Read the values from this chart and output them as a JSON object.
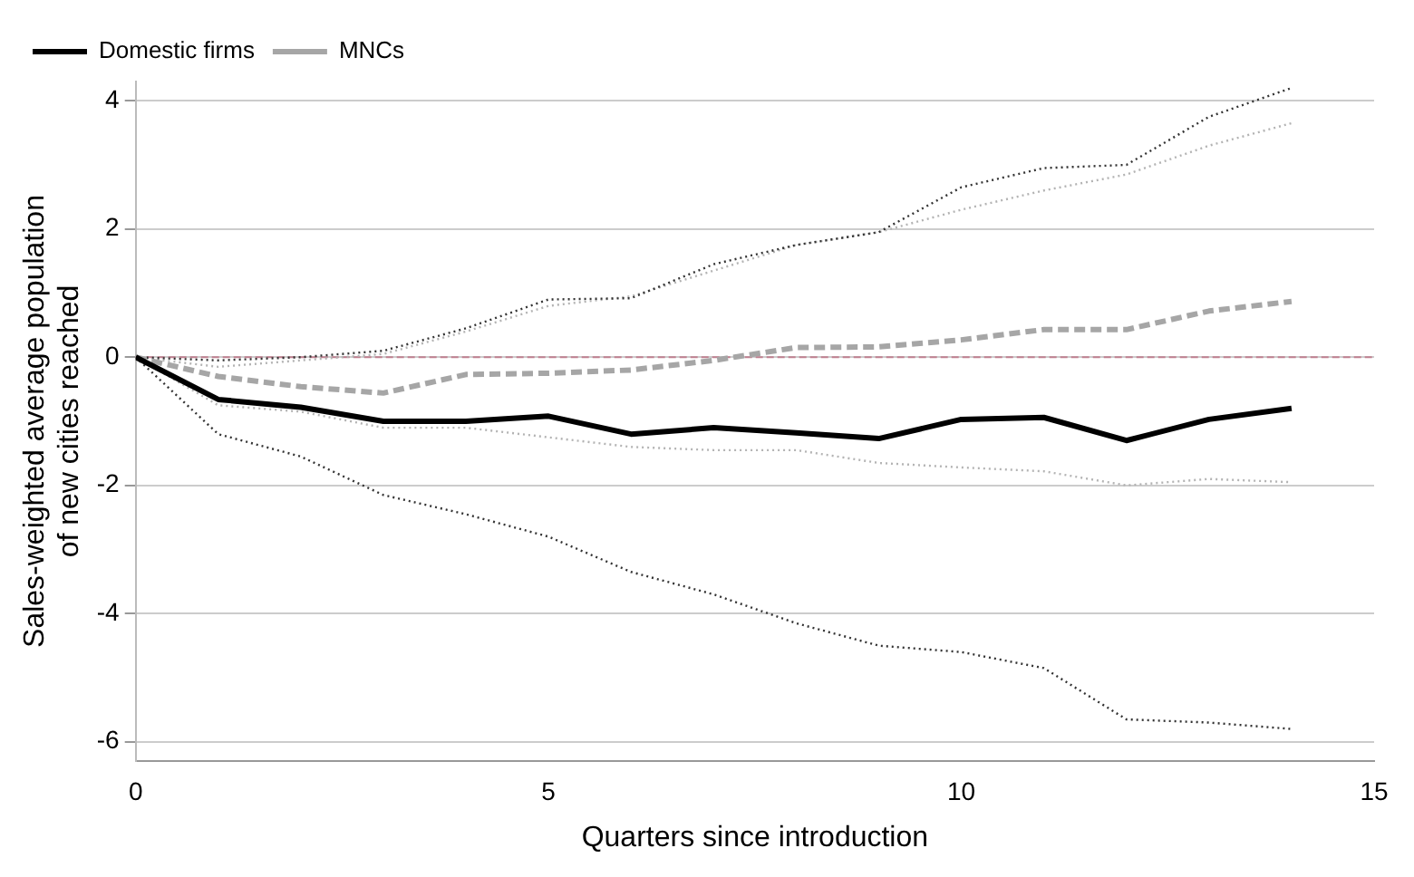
{
  "chart_data": {
    "type": "line",
    "xlabel": "Quarters since introduction",
    "ylabel": "Sales-weighted average population\nof new cities reached",
    "x": [
      0,
      1,
      2,
      3,
      4,
      5,
      6,
      7,
      8,
      9,
      10,
      11,
      12,
      13,
      14
    ],
    "series": [
      {
        "name": "Domestic firms",
        "color": "#000000",
        "line_style": "solid",
        "values": [
          0,
          -0.66,
          -0.78,
          -1.0,
          -1.0,
          -0.92,
          -1.2,
          -1.1,
          -1.18,
          -1.27,
          -0.97,
          -0.94,
          -1.3,
          -0.97,
          -0.8
        ]
      },
      {
        "name": "MNCs",
        "color": "#a6a6a6",
        "line_style": "dashed",
        "values": [
          0,
          -0.3,
          -0.46,
          -0.56,
          -0.27,
          -0.25,
          -0.2,
          -0.05,
          0.15,
          0.16,
          0.27,
          0.43,
          0.43,
          0.72,
          0.87
        ]
      },
      {
        "color": "#333333",
        "line_style": "dotted",
        "values": [
          0,
          -1.2,
          -1.55,
          -2.15,
          -2.45,
          -2.8,
          -3.35,
          -3.7,
          -4.15,
          -4.5,
          -4.6,
          -4.85,
          -5.65,
          -5.7,
          -5.8
        ]
      },
      {
        "color": "#333333",
        "line_style": "dotted",
        "values": [
          0,
          -0.05,
          0,
          0.1,
          0.45,
          0.9,
          0.92,
          1.45,
          1.75,
          1.95,
          2.65,
          2.95,
          3.0,
          3.75,
          4.2
        ]
      },
      {
        "color": "#b3b3b3",
        "line_style": "dotted",
        "values": [
          0,
          -0.75,
          -0.85,
          -1.1,
          -1.1,
          -1.25,
          -1.4,
          -1.45,
          -1.45,
          -1.65,
          -1.72,
          -1.78,
          -2.0,
          -1.9,
          -1.95
        ]
      },
      {
        "color": "#b3b3b3",
        "line_style": "dotted",
        "values": [
          0,
          -0.15,
          -0.05,
          0.05,
          0.4,
          0.8,
          0.95,
          1.35,
          1.75,
          1.95,
          2.3,
          2.6,
          2.85,
          3.3,
          3.65
        ]
      }
    ],
    "xlim": [
      0,
      15
    ],
    "xticks": [
      0,
      5,
      10,
      15
    ],
    "ylim": [
      -6.3,
      4.3
    ],
    "yticks": [
      -6,
      -4,
      -2,
      0,
      2,
      4
    ],
    "ref_lines": [
      {
        "axis": "y",
        "value": 0,
        "color": "#c08090",
        "line_style": "dashed"
      }
    ],
    "grid": "y",
    "legend": "top left",
    "marker": "none"
  }
}
